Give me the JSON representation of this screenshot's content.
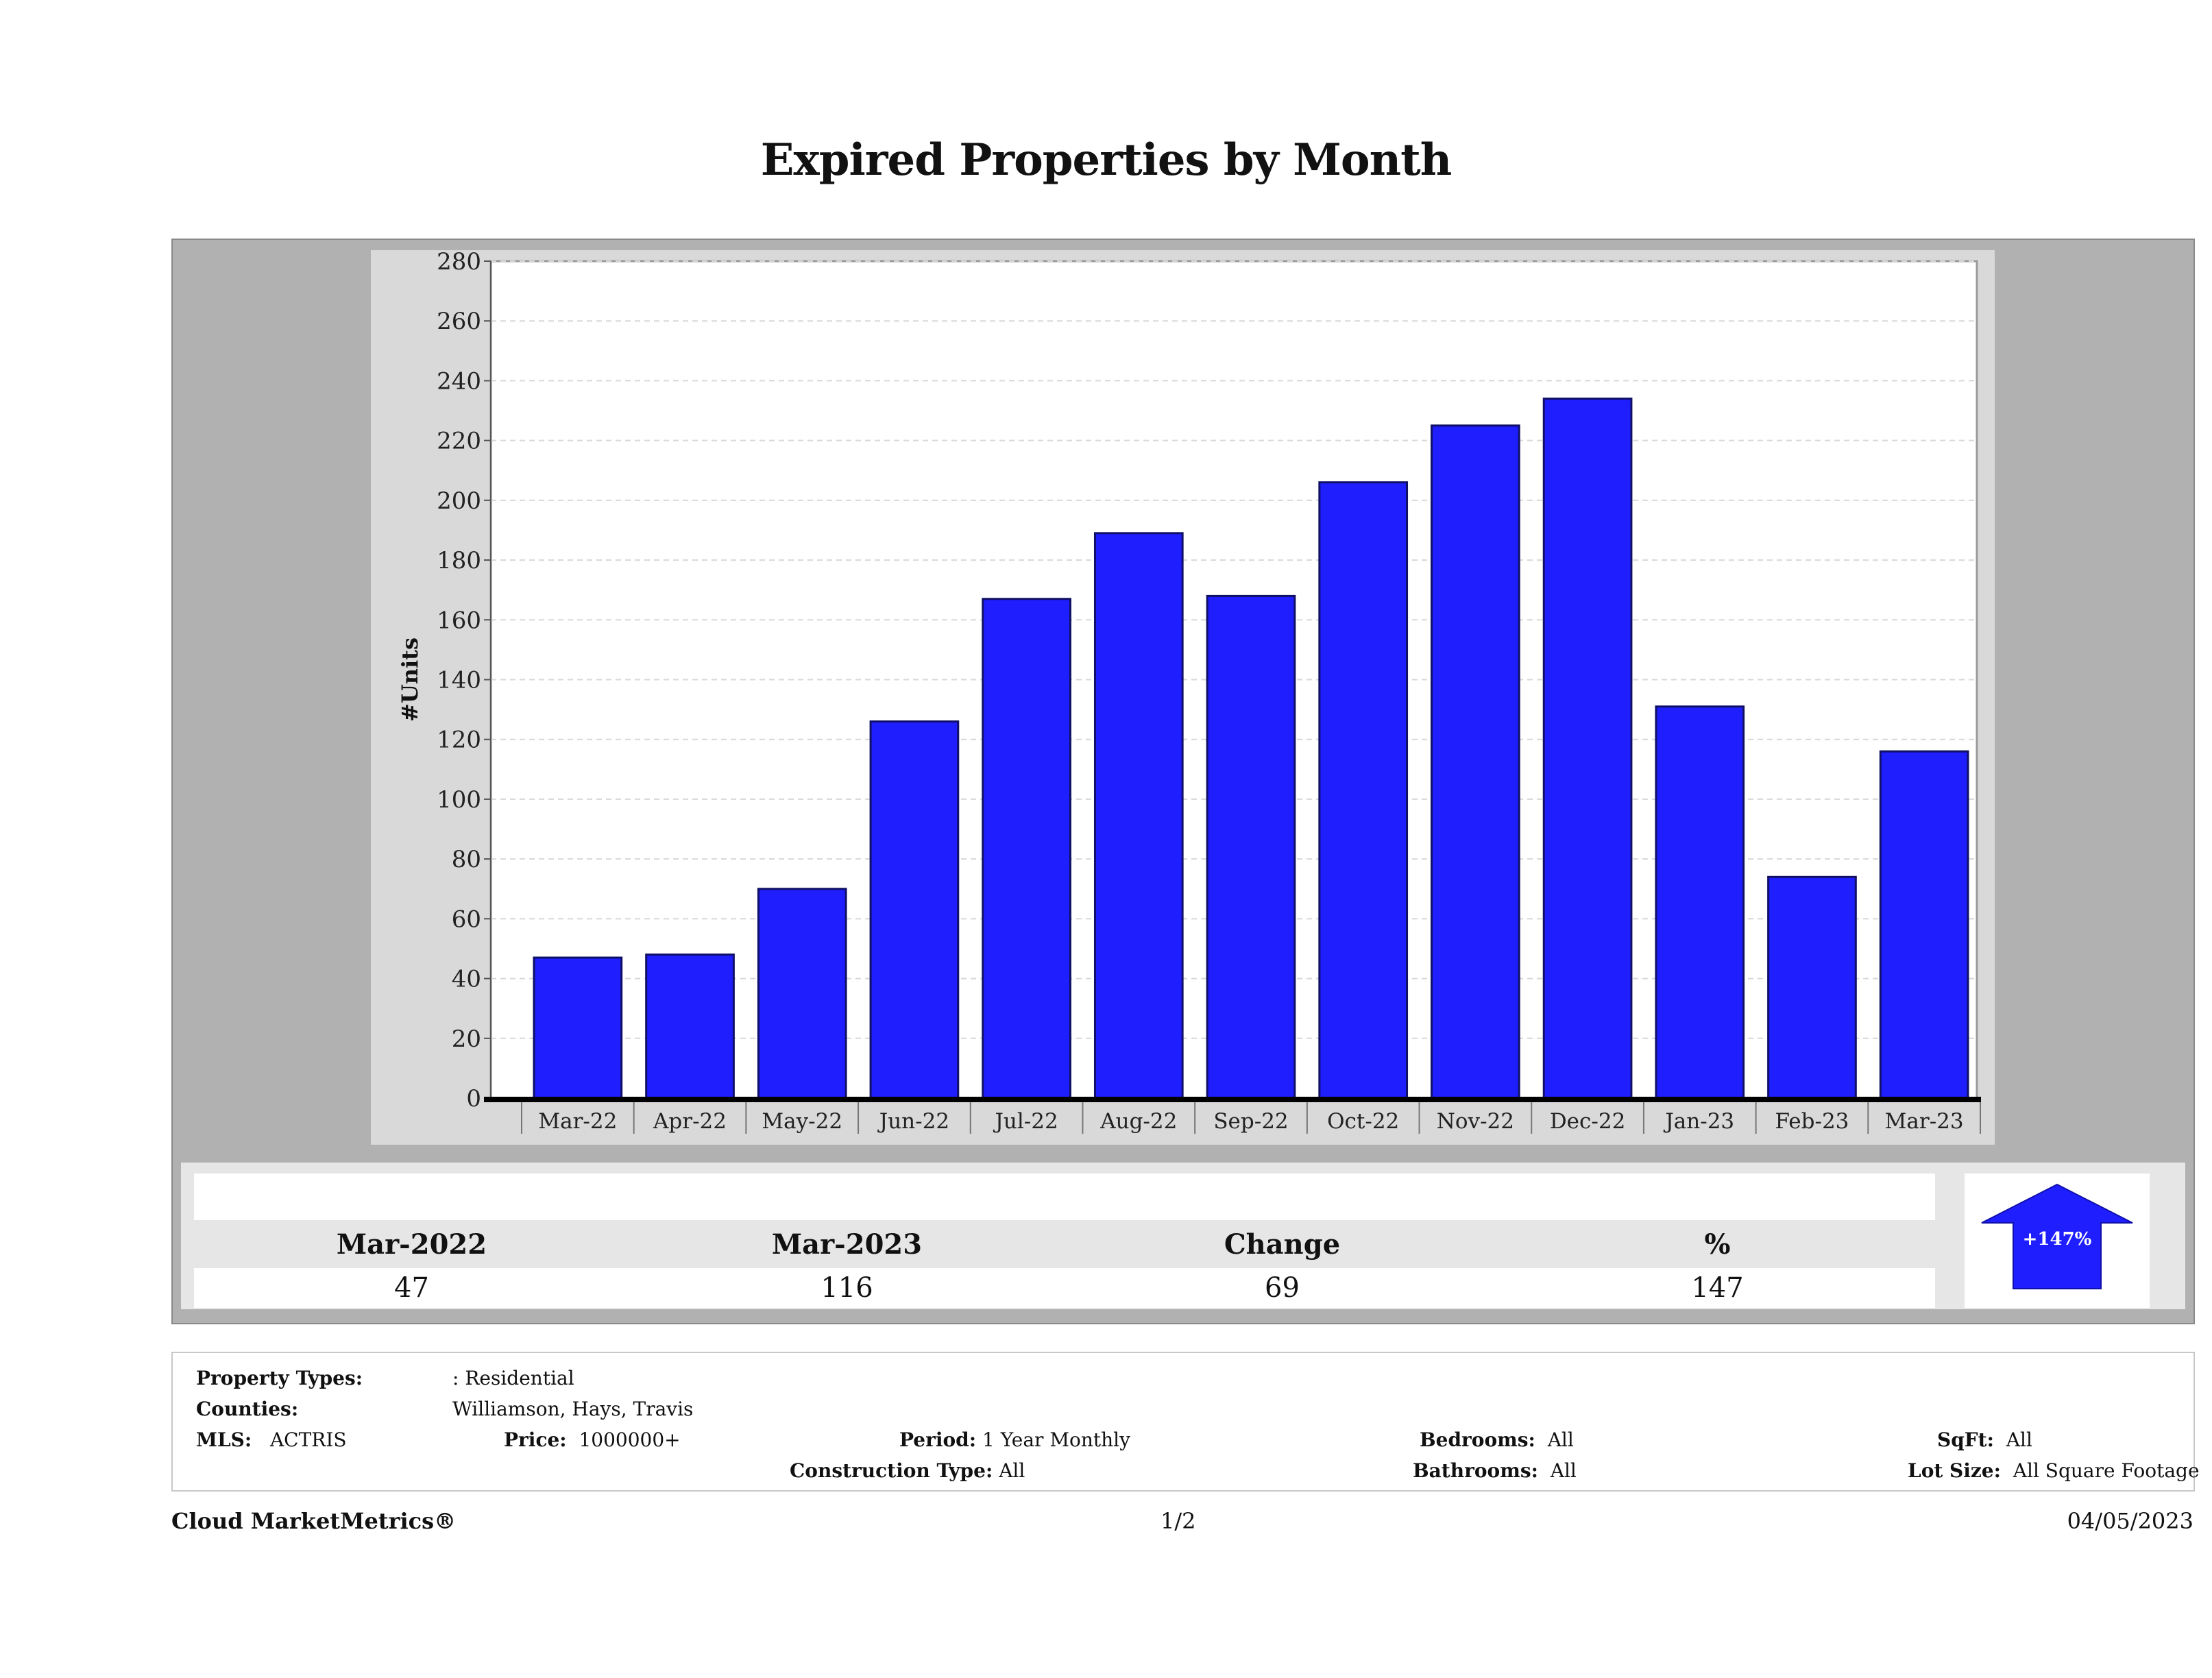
{
  "title": "Expired Properties by Month",
  "chart_data": {
    "type": "bar",
    "ylabel": "#Units",
    "xlabel": "",
    "ylim": [
      0,
      280
    ],
    "yticks": [
      0,
      20,
      40,
      60,
      80,
      100,
      120,
      140,
      160,
      180,
      200,
      220,
      240,
      260,
      280
    ],
    "categories": [
      "Mar-22",
      "Apr-22",
      "May-22",
      "Jun-22",
      "Jul-22",
      "Aug-22",
      "Sep-22",
      "Oct-22",
      "Nov-22",
      "Dec-22",
      "Jan-23",
      "Feb-23",
      "Mar-23"
    ],
    "values": [
      47,
      48,
      70,
      126,
      167,
      189,
      168,
      206,
      225,
      234,
      131,
      74,
      116
    ],
    "bar_color": "#1e1eff",
    "grid": true,
    "grid_style": "dashed"
  },
  "stats": {
    "headers": [
      "Mar-2022",
      "Mar-2023",
      "Change",
      "%"
    ],
    "values": [
      "47",
      "116",
      "69",
      "147"
    ],
    "badge": "+147%",
    "badge_icon": "up-arrow-icon"
  },
  "info": {
    "property_types_label": "Property Types:",
    "property_types_value": ": Residential",
    "counties_label": "Counties:",
    "counties_value": "Williamson, Hays, Travis",
    "mls_label": "MLS:",
    "mls_value": "ACTRIS",
    "price_label": "Price:",
    "price_value": "1000000+",
    "period_label": "Period:",
    "period_value": "1 Year Monthly",
    "construction_label": "Construction Type:",
    "construction_value": "All",
    "bedrooms_label": "Bedrooms:",
    "bedrooms_value": "All",
    "bathrooms_label": "Bathrooms:",
    "bathrooms_value": "All",
    "sqft_label": "SqFt:",
    "sqft_value": "All",
    "lotsize_label": "Lot Size:",
    "lotsize_value": "All Square Footage"
  },
  "footer": {
    "brand": "Cloud MarketMetrics®",
    "page": "1/2",
    "date": "04/05/2023"
  }
}
